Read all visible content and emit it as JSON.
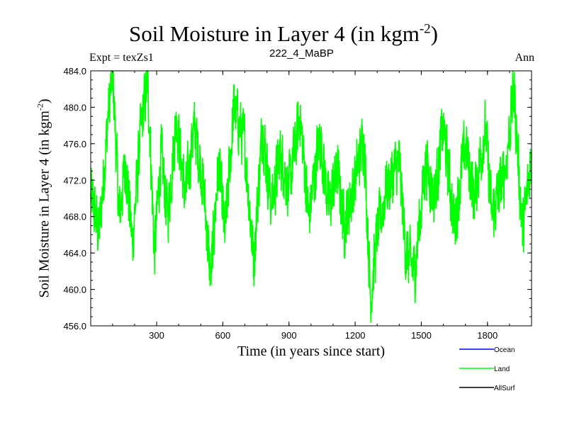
{
  "chart_data": {
    "type": "line",
    "title": "Soil Moisture in Layer 4 (in kgm",
    "title_sup": "-2",
    "title_close": ")",
    "left_label": "Expt = texZs1",
    "center_label": "222_4_MaBP",
    "right_label": "Ann",
    "ylabel": "Soil Moisture in Layer 4 (in kgm",
    "ylabel_sup": "-2",
    "ylabel_close": ")",
    "xlabel": "Time (in years since start)",
    "xlim": [
      1,
      2000
    ],
    "ylim": [
      456.0,
      484.0
    ],
    "x_ticks": [
      300,
      600,
      900,
      1200,
      1500,
      1800
    ],
    "y_ticks": [
      "456.0",
      "460.0",
      "464.0",
      "468.0",
      "472.0",
      "476.0",
      "480.0",
      "484.0"
    ],
    "legend": [
      {
        "name": "Ocean",
        "color": "#0000ff"
      },
      {
        "name": "Land",
        "color": "#00ff00"
      },
      {
        "name": "AllSurf",
        "color": "#000000"
      }
    ],
    "series": [
      {
        "name": "Land",
        "color": "#00ff00",
        "x_start": 1,
        "x_end": 2000,
        "mean": 473.5,
        "anchor_points": [
          [
            1,
            470.5
          ],
          [
            40,
            466
          ],
          [
            80,
            479
          ],
          [
            100,
            484
          ],
          [
            130,
            468
          ],
          [
            160,
            474
          ],
          [
            190,
            465
          ],
          [
            230,
            478
          ],
          [
            260,
            483
          ],
          [
            290,
            464
          ],
          [
            320,
            475
          ],
          [
            350,
            468
          ],
          [
            390,
            479
          ],
          [
            430,
            470
          ],
          [
            470,
            478
          ],
          [
            510,
            472
          ],
          [
            545,
            461
          ],
          [
            580,
            474
          ],
          [
            610,
            466
          ],
          [
            650,
            480
          ],
          [
            700,
            476
          ],
          [
            740,
            463
          ],
          [
            780,
            478
          ],
          [
            820,
            469
          ],
          [
            860,
            475
          ],
          [
            900,
            471
          ],
          [
            950,
            479
          ],
          [
            990,
            468
          ],
          [
            1040,
            477
          ],
          [
            1080,
            469
          ],
          [
            1120,
            473
          ],
          [
            1150,
            467
          ],
          [
            1200,
            472
          ],
          [
            1240,
            477
          ],
          [
            1270,
            459
          ],
          [
            1300,
            466
          ],
          [
            1340,
            471
          ],
          [
            1400,
            474
          ],
          [
            1430,
            464
          ],
          [
            1470,
            462
          ],
          [
            1520,
            474
          ],
          [
            1560,
            470
          ],
          [
            1600,
            478
          ],
          [
            1650,
            467
          ],
          [
            1700,
            476
          ],
          [
            1740,
            470
          ],
          [
            1790,
            478
          ],
          [
            1820,
            468
          ],
          [
            1880,
            473
          ],
          [
            1920,
            482
          ],
          [
            1960,
            466
          ],
          [
            2000,
            475
          ]
        ]
      }
    ]
  }
}
